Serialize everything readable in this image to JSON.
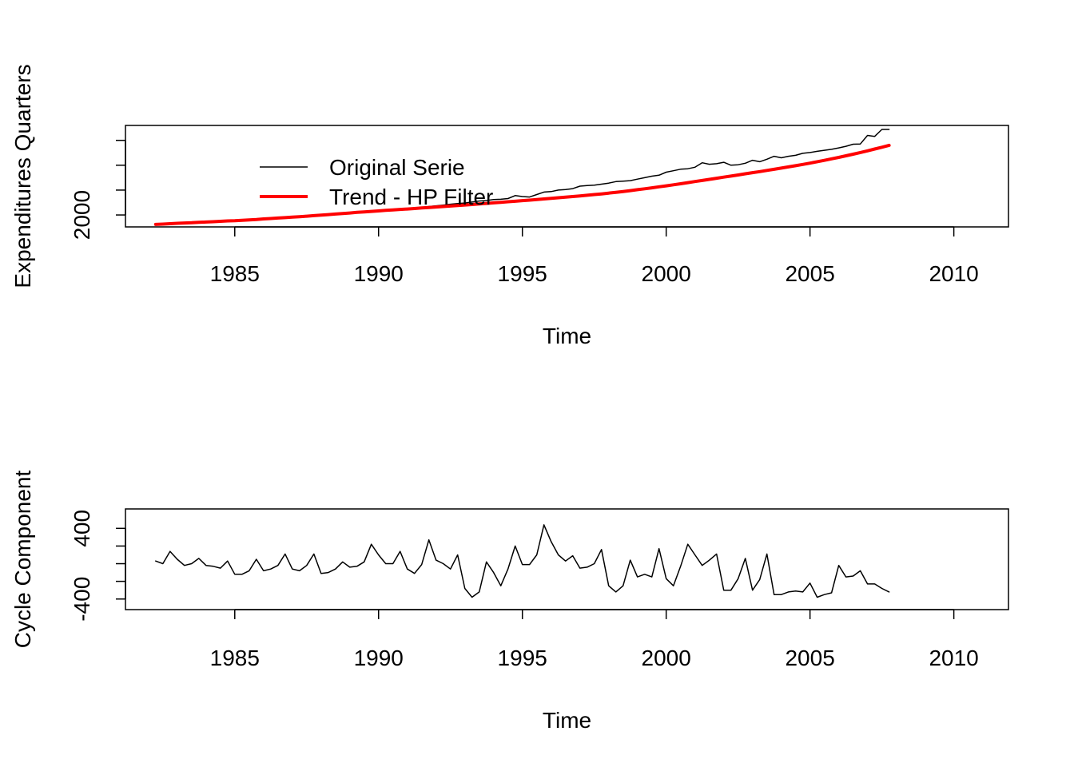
{
  "chart_data": [
    {
      "type": "line",
      "xlabel": "Time",
      "ylabel": "Expenditures Quarters",
      "xlim": [
        1981.2,
        2011.9
      ],
      "ylim": [
        1880,
        2900
      ],
      "x_ticks": [
        1985,
        1990,
        1995,
        2000,
        2005,
        2010
      ],
      "y_ticks": [
        2000,
        2250,
        2500,
        2750
      ],
      "y_tick_labels": [
        {
          "value": 2000,
          "label": "2000"
        }
      ],
      "grid": false,
      "legend_position": "top-left",
      "x_start": 1982.25,
      "x_step": 0.25,
      "series": [
        {
          "name": "Original Serie",
          "color": "#000000",
          "values": [
            1908,
            1908,
            1914,
            1910,
            1915,
            1920,
            1922,
            1925,
            1927,
            1933,
            1936,
            1936,
            1941,
            1945,
            1949,
            1954,
            1960,
            1966,
            1969,
            1973,
            1980,
            1984,
            1988,
            1996,
            2002,
            2006,
            2014,
            2018,
            2022,
            2026,
            2030,
            2035,
            2045,
            2052,
            2057,
            2066,
            2070,
            2076,
            2085,
            2092,
            2099,
            2108,
            2115,
            2120,
            2130,
            2140,
            2145,
            2155,
            2158,
            2165,
            2195,
            2185,
            2180,
            2205,
            2230,
            2235,
            2250,
            2255,
            2265,
            2290,
            2296,
            2300,
            2310,
            2320,
            2335,
            2340,
            2345,
            2360,
            2375,
            2390,
            2400,
            2430,
            2445,
            2460,
            2465,
            2480,
            2525,
            2510,
            2515,
            2530,
            2500,
            2505,
            2520,
            2550,
            2535,
            2560,
            2590,
            2575,
            2590,
            2600,
            2620,
            2628,
            2640,
            2650,
            2660,
            2674,
            2690,
            2711,
            2714,
            2800,
            2790,
            2860,
            2860
          ]
        },
        {
          "name": "Trend - HP Filter",
          "color": "#ff0000",
          "values": [
            1905,
            1908,
            1912,
            1916,
            1919,
            1922,
            1926,
            1929,
            1932,
            1936,
            1940,
            1943,
            1947,
            1951,
            1955,
            1960,
            1964,
            1969,
            1973,
            1978,
            1983,
            1988,
            1993,
            1999,
            2004,
            2009,
            2015,
            2020,
            2026,
            2031,
            2036,
            2041,
            2046,
            2051,
            2056,
            2060,
            2065,
            2070,
            2075,
            2080,
            2085,
            2090,
            2095,
            2100,
            2105,
            2111,
            2116,
            2122,
            2127,
            2133,
            2138,
            2144,
            2149,
            2155,
            2161,
            2167,
            2173,
            2179,
            2185,
            2191,
            2198,
            2205,
            2212,
            2220,
            2228,
            2236,
            2245,
            2254,
            2263,
            2273,
            2283,
            2293,
            2303,
            2314,
            2325,
            2336,
            2347,
            2358,
            2369,
            2380,
            2391,
            2402,
            2414,
            2425,
            2436,
            2448,
            2459,
            2471,
            2483,
            2495,
            2508,
            2521,
            2535,
            2549,
            2564,
            2579,
            2595,
            2611,
            2628,
            2645,
            2663,
            2681,
            2700
          ]
        }
      ]
    },
    {
      "type": "line",
      "xlabel": "Time",
      "ylabel": "Cycle Component",
      "xlim": [
        1981.2,
        2011.9
      ],
      "ylim": [
        -520,
        620
      ],
      "x_ticks": [
        1985,
        1990,
        1995,
        2000,
        2005,
        2010
      ],
      "y_ticks": [
        -400,
        -200,
        0,
        200,
        400
      ],
      "y_tick_labels": [
        {
          "value": -400,
          "label": "-400"
        },
        {
          "value": 400,
          "label": "400"
        }
      ],
      "grid": false,
      "x_start": 1982.25,
      "x_step": 0.25,
      "series": [
        {
          "color": "#000000",
          "values": [
            30,
            0,
            140,
            50,
            -20,
            0,
            60,
            -20,
            -30,
            -50,
            30,
            -120,
            -120,
            -80,
            50,
            -80,
            -60,
            -20,
            110,
            -60,
            -80,
            -20,
            110,
            -110,
            -100,
            -60,
            20,
            -40,
            -30,
            20,
            220,
            100,
            0,
            0,
            140,
            -60,
            -110,
            -10,
            270,
            40,
            0,
            -60,
            100,
            -280,
            -380,
            -320,
            20,
            -100,
            -250,
            -60,
            200,
            -10,
            -10,
            100,
            440,
            250,
            100,
            30,
            90,
            -50,
            -40,
            0,
            160,
            -250,
            -320,
            -250,
            40,
            -150,
            -120,
            -150,
            170,
            -170,
            -250,
            -30,
            220,
            100,
            -20,
            40,
            110,
            -300,
            -300,
            -170,
            60,
            -300,
            -180,
            110,
            -350,
            -350,
            -320,
            -310,
            -320,
            -220,
            -380,
            -350,
            -330,
            -20,
            -150,
            -140,
            -80,
            -230,
            -230,
            -280,
            -320
          ]
        }
      ]
    }
  ],
  "legend": {
    "items": [
      {
        "label": "Original Serie",
        "color": "#000000",
        "width": 1.5
      },
      {
        "label": "Trend - HP Filter",
        "color": "#ff0000",
        "width": 4
      }
    ]
  }
}
